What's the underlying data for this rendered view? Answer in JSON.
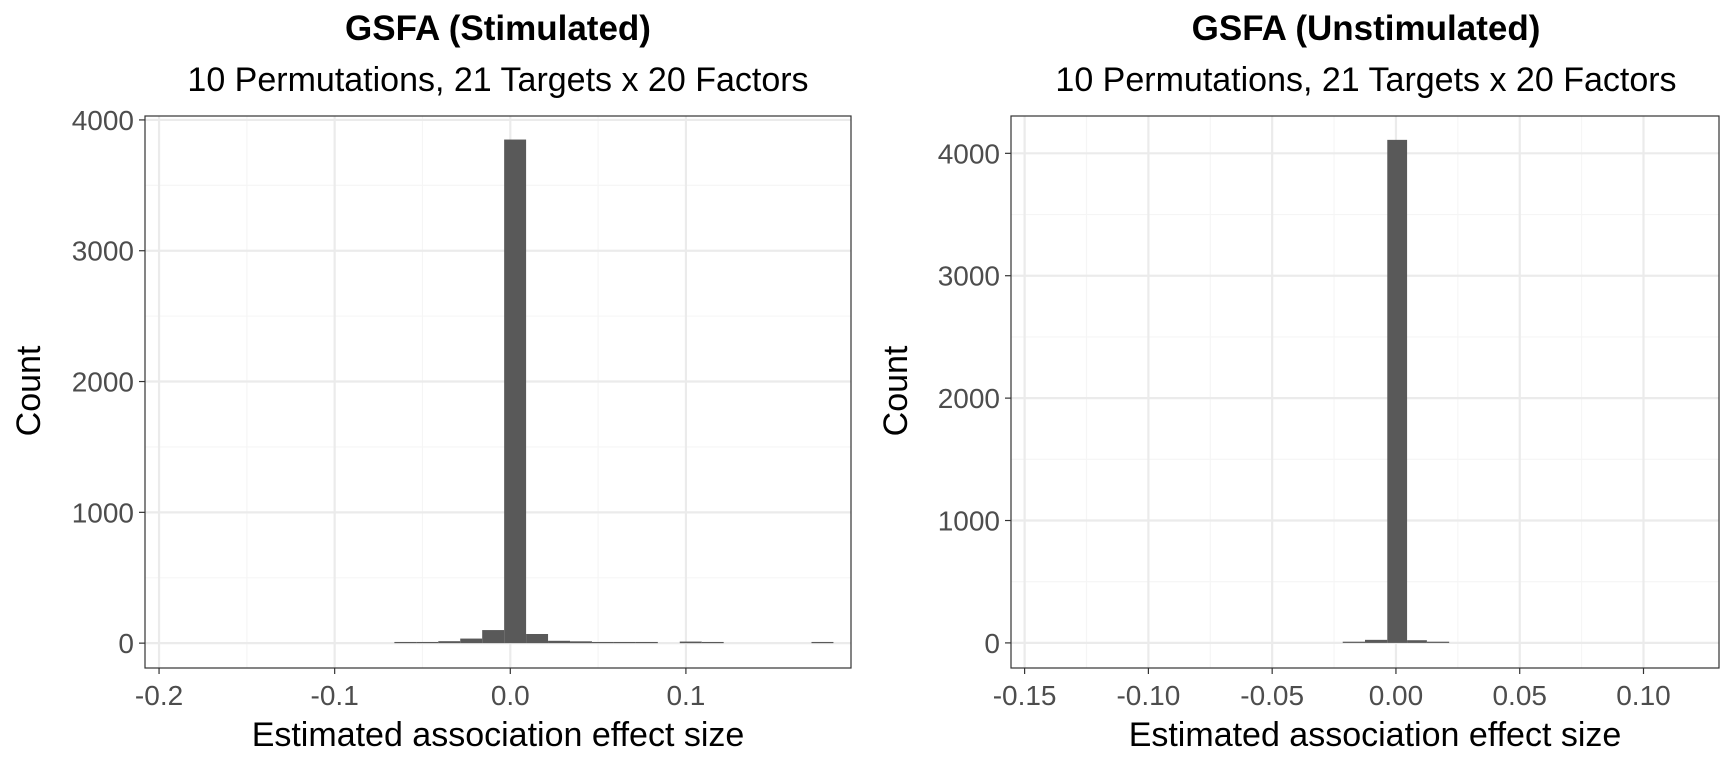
{
  "chart_data": [
    {
      "type": "bar",
      "title": "GSFA (Stimulated)",
      "subtitle": "10 Permutations, 21 Targets x 20 Factors",
      "xlabel": "Estimated association effect size",
      "ylabel": "Count",
      "xlim": [
        -0.208,
        0.194
      ],
      "ylim": [
        -190,
        4030
      ],
      "xticks": [
        -0.2,
        -0.1,
        0.0,
        0.1
      ],
      "xtick_labels": [
        "-0.2",
        "-0.1",
        "0.0",
        "0.1"
      ],
      "yticks": [
        0,
        1000,
        2000,
        3000,
        4000
      ],
      "ytick_labels": [
        "0",
        "1000",
        "2000",
        "3000",
        "4000"
      ],
      "grid": true,
      "bins": [
        {
          "x0": -0.066,
          "x1": -0.0535,
          "count": 2
        },
        {
          "x0": -0.0535,
          "x1": -0.041,
          "count": 3
        },
        {
          "x0": -0.041,
          "x1": -0.0285,
          "count": 15
        },
        {
          "x0": -0.0285,
          "x1": -0.016,
          "count": 35
        },
        {
          "x0": -0.016,
          "x1": -0.0035,
          "count": 100
        },
        {
          "x0": -0.0035,
          "x1": 0.009,
          "count": 3850
        },
        {
          "x0": 0.009,
          "x1": 0.0215,
          "count": 70
        },
        {
          "x0": 0.0215,
          "x1": 0.034,
          "count": 18
        },
        {
          "x0": 0.034,
          "x1": 0.0465,
          "count": 14
        },
        {
          "x0": 0.0465,
          "x1": 0.059,
          "count": 6
        },
        {
          "x0": 0.059,
          "x1": 0.0715,
          "count": 3
        },
        {
          "x0": 0.0715,
          "x1": 0.084,
          "count": 2
        },
        {
          "x0": 0.0965,
          "x1": 0.109,
          "count": 12
        },
        {
          "x0": 0.109,
          "x1": 0.1215,
          "count": 3
        },
        {
          "x0": 0.1715,
          "x1": 0.184,
          "count": 4
        }
      ]
    },
    {
      "type": "bar",
      "title": "GSFA (Unstimulated)",
      "subtitle": "10 Permutations, 21 Targets x 20 Factors",
      "xlabel": "Estimated association effect size",
      "ylabel": "Count",
      "xlim": [
        -0.1555,
        0.1305
      ],
      "ylim": [
        -205,
        4305
      ],
      "xticks": [
        -0.15,
        -0.1,
        -0.05,
        0.0,
        0.05,
        0.1
      ],
      "xtick_labels": [
        "-0.15",
        "-0.10",
        "-0.05",
        "0.00",
        "0.05",
        "0.10"
      ],
      "yticks": [
        0,
        1000,
        2000,
        3000,
        4000
      ],
      "ytick_labels": [
        "0",
        "1000",
        "2000",
        "3000",
        "4000"
      ],
      "grid": true,
      "bins": [
        {
          "x0": -0.0215,
          "x1": -0.0125,
          "count": 8
        },
        {
          "x0": -0.0125,
          "x1": -0.0035,
          "count": 25
        },
        {
          "x0": -0.0035,
          "x1": 0.0045,
          "count": 4110
        },
        {
          "x0": 0.0045,
          "x1": 0.0125,
          "count": 22
        },
        {
          "x0": 0.0125,
          "x1": 0.0215,
          "count": 6
        }
      ]
    }
  ]
}
